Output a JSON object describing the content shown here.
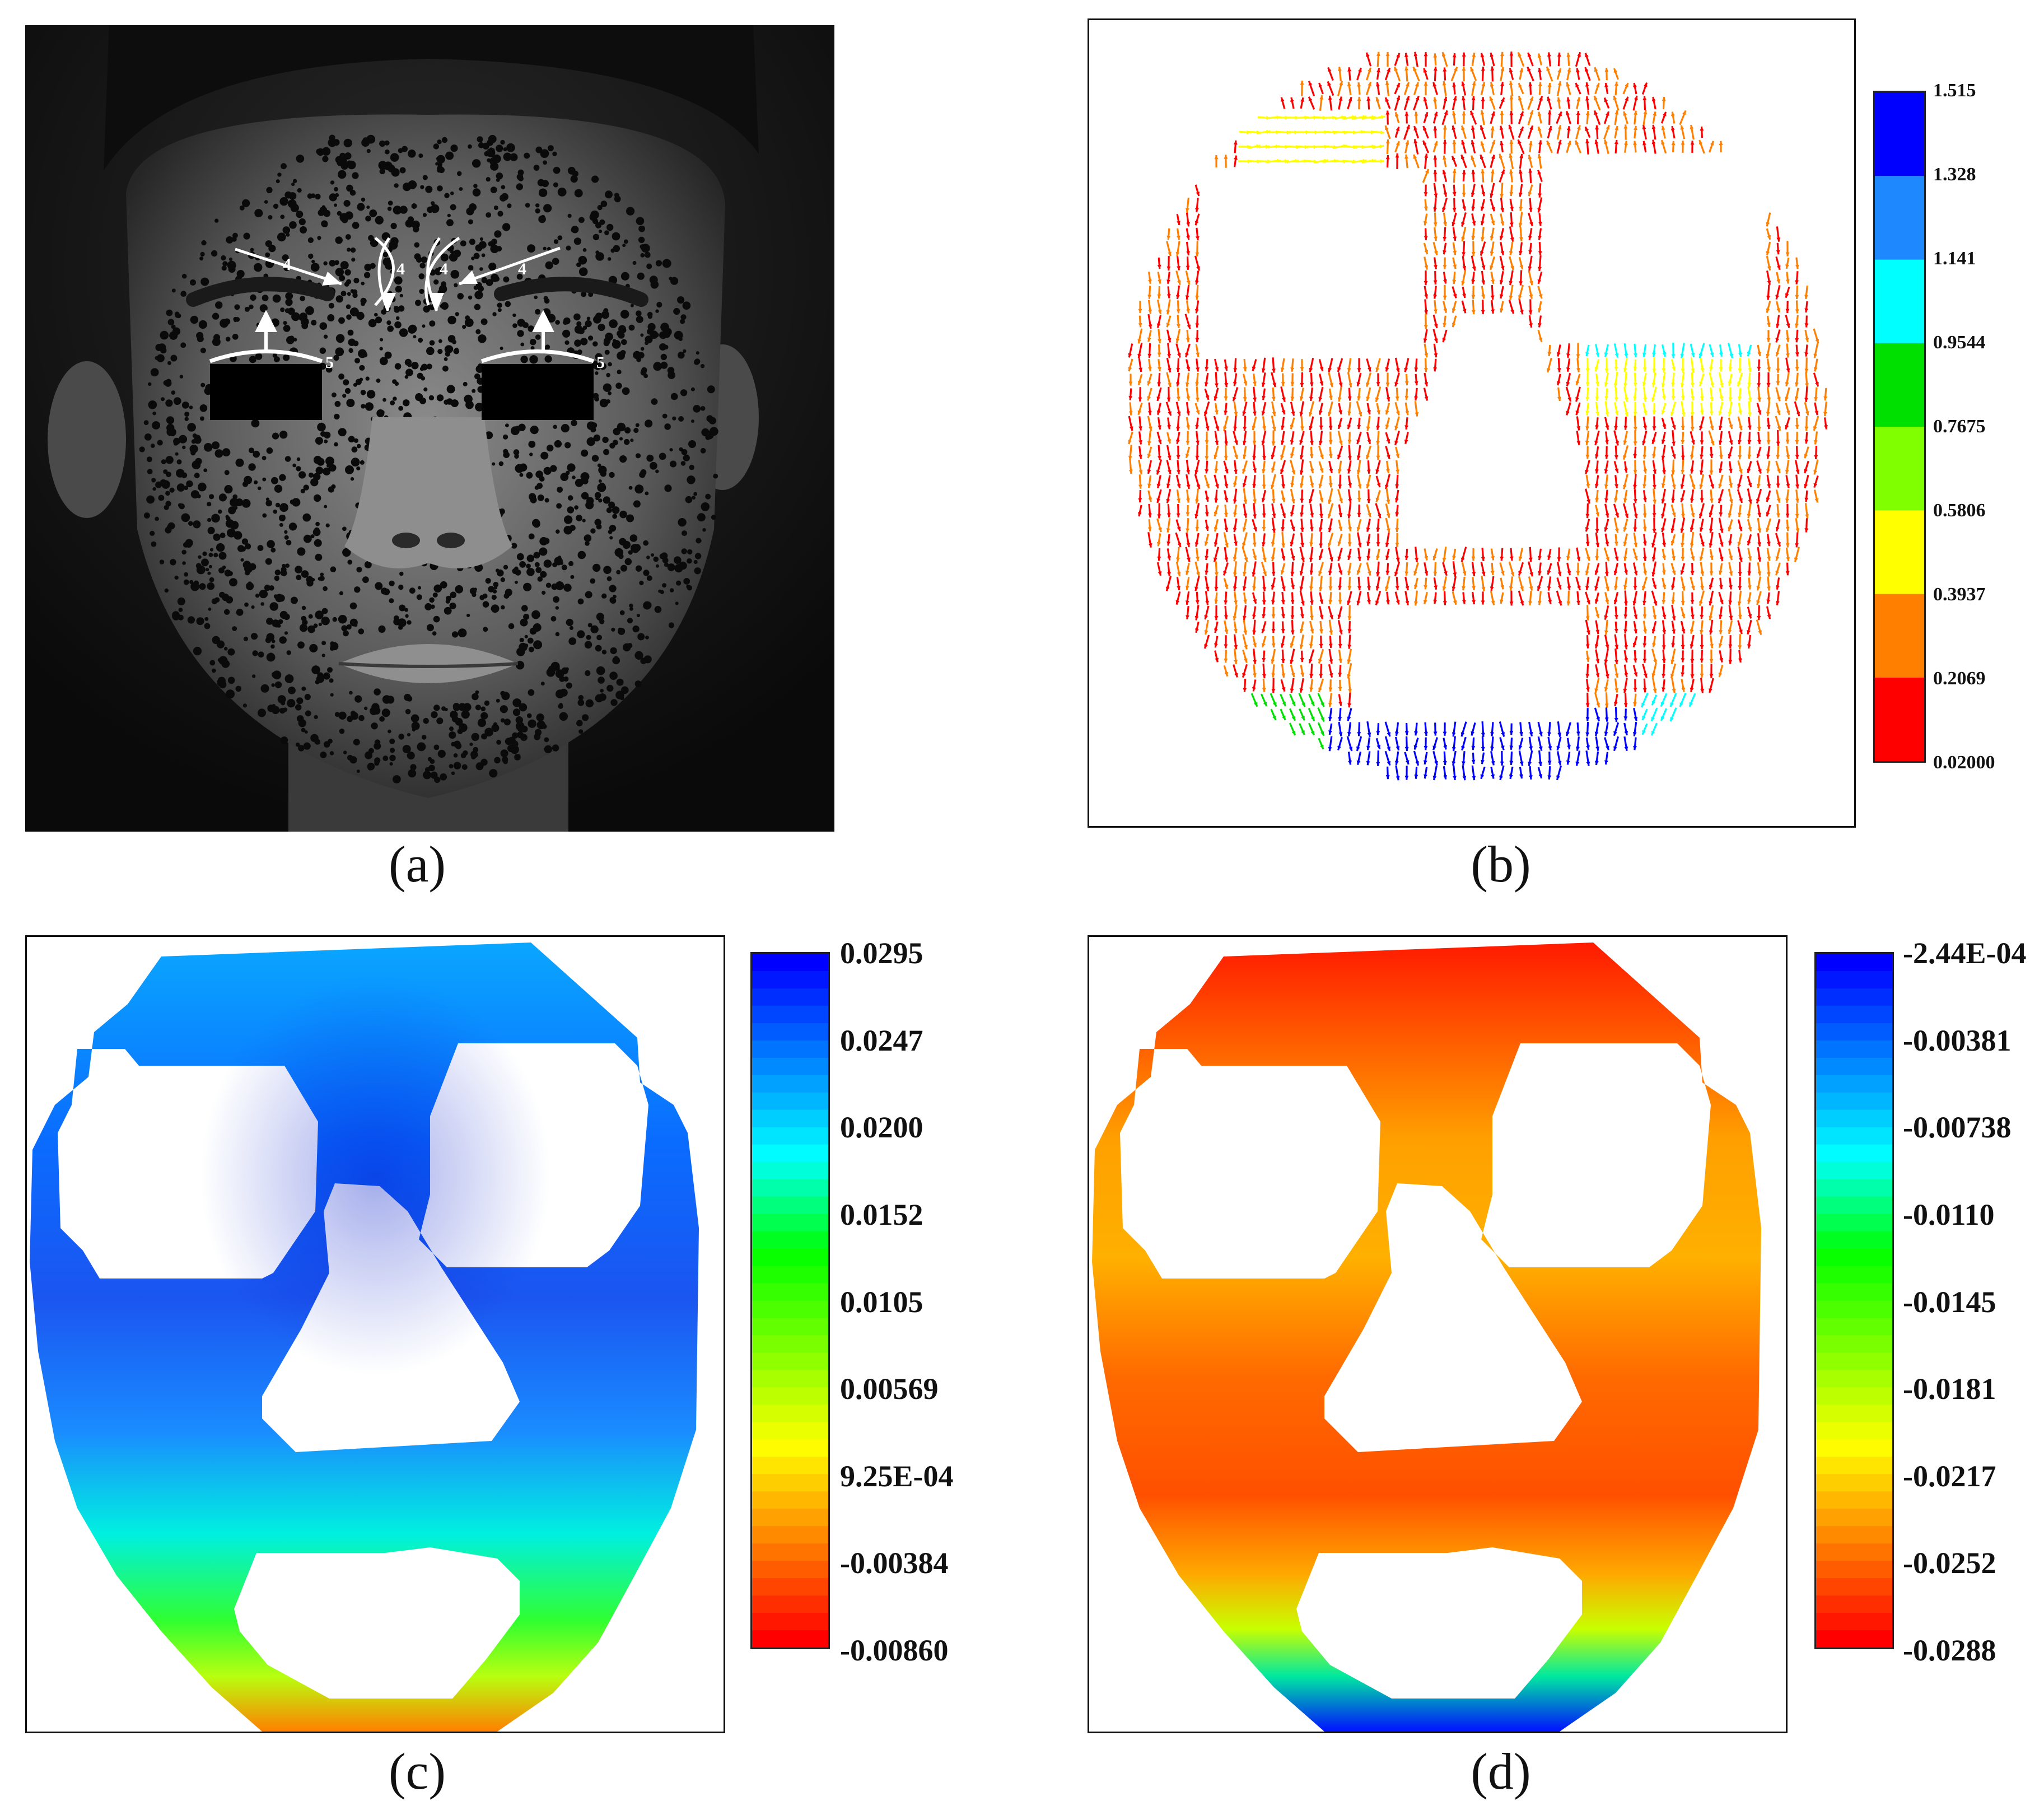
{
  "figure": {
    "panels": [
      {
        "id": "a",
        "caption": "(a)"
      },
      {
        "id": "b",
        "caption": "(b)"
      },
      {
        "id": "c",
        "caption": "(c)"
      },
      {
        "id": "d",
        "caption": "(d)"
      }
    ],
    "photo_annotations": {
      "arrow_labels": [
        "4",
        "4",
        "4",
        "4"
      ],
      "eyelid_labels": [
        "5",
        "5"
      ]
    }
  },
  "colors": {
    "jet": [
      "#0000ff",
      "#0080ff",
      "#00ffff",
      "#00ff00",
      "#80ff00",
      "#ffff00",
      "#ff8000",
      "#ff0000"
    ],
    "legend_b": [
      "#ff0000",
      "#ff8000",
      "#ffff00",
      "#7fff00",
      "#00e000",
      "#00ffff",
      "#1e88ff",
      "#0000ff"
    ]
  },
  "chart_data": [
    {
      "type": "vector-field",
      "panel": "b",
      "legend_ticks": [
        "1.515",
        "1.328",
        "1.141",
        "0.9544",
        "0.7675",
        "0.5806",
        "0.3937",
        "0.2069",
        "0.02000"
      ],
      "range": [
        0.02,
        1.515
      ]
    },
    {
      "type": "heatmap",
      "panel": "c",
      "legend_ticks": [
        "0.0295",
        "0.0247",
        "0.0200",
        "0.0152",
        "0.0105",
        "0.00569",
        "9.25E-04",
        "-0.00384",
        "-0.00860"
      ],
      "range": [
        -0.0086,
        0.0295
      ]
    },
    {
      "type": "heatmap",
      "panel": "d",
      "legend_ticks": [
        "-2.44E-04",
        "-0.00381",
        "-0.00738",
        "-0.0110",
        "-0.0145",
        "-0.0181",
        "-0.0217",
        "-0.0252",
        "-0.0288"
      ],
      "range": [
        -0.0288,
        -0.000244
      ]
    }
  ]
}
